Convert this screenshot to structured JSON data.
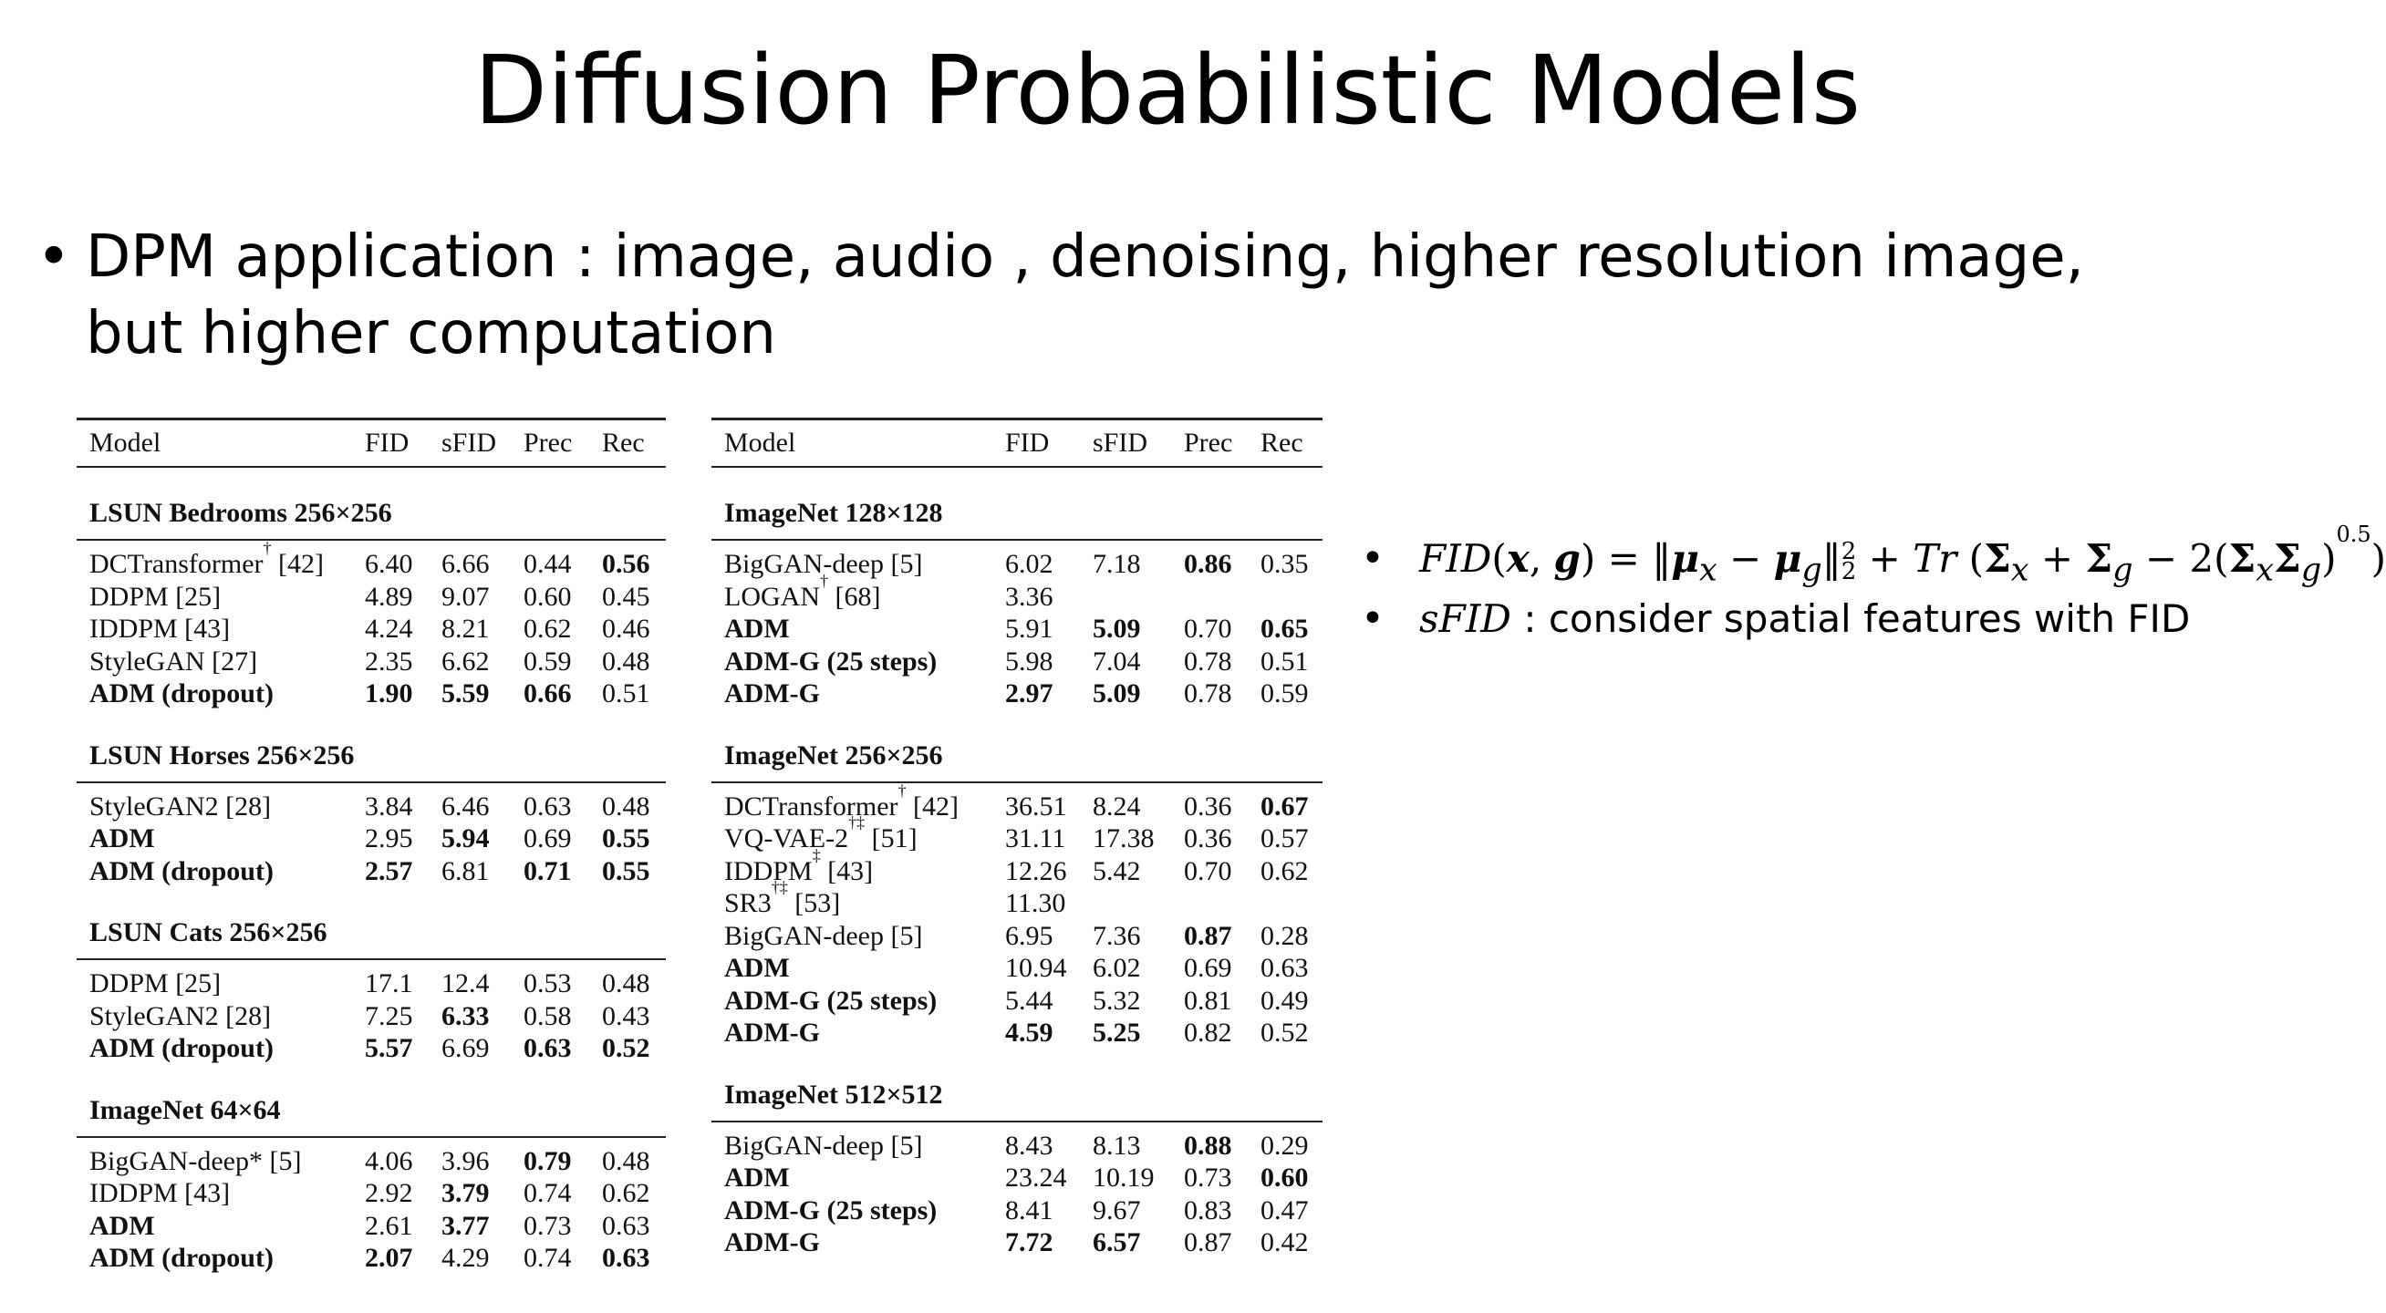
{
  "title": "Diffusion Probabilistic Models",
  "bullet": "DPM application : image, audio , denoising, higher resolution image, but higher computation",
  "columns": [
    "Model",
    "FID",
    "sFID",
    "Prec",
    "Rec"
  ],
  "left_table": [
    {
      "section": "LSUN Bedrooms 256×256",
      "rows": [
        {
          "model": "DCTransformer",
          "sup": "†",
          "ref": " [42]",
          "bold_model": false,
          "v": [
            "6.40",
            "6.66",
            "0.44",
            "0.56"
          ],
          "b": [
            false,
            false,
            false,
            true
          ]
        },
        {
          "model": "DDPM [25]",
          "sup": "",
          "ref": "",
          "bold_model": false,
          "v": [
            "4.89",
            "9.07",
            "0.60",
            "0.45"
          ],
          "b": [
            false,
            false,
            false,
            false
          ]
        },
        {
          "model": "IDDPM [43]",
          "sup": "",
          "ref": "",
          "bold_model": false,
          "v": [
            "4.24",
            "8.21",
            "0.62",
            "0.46"
          ],
          "b": [
            false,
            false,
            false,
            false
          ]
        },
        {
          "model": "StyleGAN [27]",
          "sup": "",
          "ref": "",
          "bold_model": false,
          "v": [
            "2.35",
            "6.62",
            "0.59",
            "0.48"
          ],
          "b": [
            false,
            false,
            false,
            false
          ]
        },
        {
          "model": "ADM (dropout)",
          "sup": "",
          "ref": "",
          "bold_model": true,
          "v": [
            "1.90",
            "5.59",
            "0.66",
            "0.51"
          ],
          "b": [
            true,
            true,
            true,
            false
          ]
        }
      ]
    },
    {
      "section": "LSUN Horses 256×256",
      "rows": [
        {
          "model": "StyleGAN2 [28]",
          "sup": "",
          "ref": "",
          "bold_model": false,
          "v": [
            "3.84",
            "6.46",
            "0.63",
            "0.48"
          ],
          "b": [
            false,
            false,
            false,
            false
          ]
        },
        {
          "model": "ADM",
          "sup": "",
          "ref": "",
          "bold_model": true,
          "v": [
            "2.95",
            "5.94",
            "0.69",
            "0.55"
          ],
          "b": [
            false,
            true,
            false,
            true
          ]
        },
        {
          "model": "ADM (dropout)",
          "sup": "",
          "ref": "",
          "bold_model": true,
          "v": [
            "2.57",
            "6.81",
            "0.71",
            "0.55"
          ],
          "b": [
            true,
            false,
            true,
            true
          ]
        }
      ]
    },
    {
      "section": "LSUN Cats 256×256",
      "rows": [
        {
          "model": "DDPM [25]",
          "sup": "",
          "ref": "",
          "bold_model": false,
          "v": [
            "17.1",
            "12.4",
            "0.53",
            "0.48"
          ],
          "b": [
            false,
            false,
            false,
            false
          ]
        },
        {
          "model": "StyleGAN2 [28]",
          "sup": "",
          "ref": "",
          "bold_model": false,
          "v": [
            "7.25",
            "6.33",
            "0.58",
            "0.43"
          ],
          "b": [
            false,
            true,
            false,
            false
          ]
        },
        {
          "model": "ADM (dropout)",
          "sup": "",
          "ref": "",
          "bold_model": true,
          "v": [
            "5.57",
            "6.69",
            "0.63",
            "0.52"
          ],
          "b": [
            true,
            false,
            true,
            true
          ]
        }
      ]
    },
    {
      "section": "ImageNet 64×64",
      "rows": [
        {
          "model": "BigGAN-deep* [5]",
          "sup": "",
          "ref": "",
          "bold_model": false,
          "v": [
            "4.06",
            "3.96",
            "0.79",
            "0.48"
          ],
          "b": [
            false,
            false,
            true,
            false
          ]
        },
        {
          "model": "IDDPM [43]",
          "sup": "",
          "ref": "",
          "bold_model": false,
          "v": [
            "2.92",
            "3.79",
            "0.74",
            "0.62"
          ],
          "b": [
            false,
            true,
            false,
            false
          ]
        },
        {
          "model": "ADM",
          "sup": "",
          "ref": "",
          "bold_model": true,
          "v": [
            "2.61",
            "3.77",
            "0.73",
            "0.63"
          ],
          "b": [
            false,
            true,
            false,
            false
          ]
        },
        {
          "model": "ADM (dropout)",
          "sup": "",
          "ref": "",
          "bold_model": true,
          "v": [
            "2.07",
            "4.29",
            "0.74",
            "0.63"
          ],
          "b": [
            true,
            false,
            false,
            true
          ]
        }
      ]
    }
  ],
  "right_table": [
    {
      "section": "ImageNet 128×128",
      "rows": [
        {
          "model": "BigGAN-deep [5]",
          "sup": "",
          "ref": "",
          "bold_model": false,
          "v": [
            "6.02",
            "7.18",
            "0.86",
            "0.35"
          ],
          "b": [
            false,
            false,
            true,
            false
          ]
        },
        {
          "model": "LOGAN",
          "sup": "†",
          "ref": " [68]",
          "bold_model": false,
          "v": [
            "3.36",
            "",
            "",
            ""
          ],
          "b": [
            false,
            false,
            false,
            false
          ]
        },
        {
          "model": "ADM",
          "sup": "",
          "ref": "",
          "bold_model": true,
          "v": [
            "5.91",
            "5.09",
            "0.70",
            "0.65"
          ],
          "b": [
            false,
            true,
            false,
            true
          ]
        },
        {
          "model": "ADM-G (25 steps)",
          "sup": "",
          "ref": "",
          "bold_model": true,
          "v": [
            "5.98",
            "7.04",
            "0.78",
            "0.51"
          ],
          "b": [
            false,
            false,
            false,
            false
          ]
        },
        {
          "model": "ADM-G",
          "sup": "",
          "ref": "",
          "bold_model": true,
          "v": [
            "2.97",
            "5.09",
            "0.78",
            "0.59"
          ],
          "b": [
            true,
            true,
            false,
            false
          ]
        }
      ]
    },
    {
      "section": "ImageNet 256×256",
      "rows": [
        {
          "model": "DCTransformer",
          "sup": "†",
          "ref": " [42]",
          "bold_model": false,
          "v": [
            "36.51",
            "8.24",
            "0.36",
            "0.67"
          ],
          "b": [
            false,
            false,
            false,
            true
          ]
        },
        {
          "model": "VQ-VAE-2",
          "sup": "†‡",
          "ref": " [51]",
          "bold_model": false,
          "v": [
            "31.11",
            "17.38",
            "0.36",
            "0.57"
          ],
          "b": [
            false,
            false,
            false,
            false
          ]
        },
        {
          "model": "IDDPM",
          "sup": "‡",
          "ref": " [43]",
          "bold_model": false,
          "v": [
            "12.26",
            "5.42",
            "0.70",
            "0.62"
          ],
          "b": [
            false,
            false,
            false,
            false
          ]
        },
        {
          "model": "SR3",
          "sup": "†‡",
          "ref": " [53]",
          "bold_model": false,
          "v": [
            "11.30",
            "",
            "",
            ""
          ],
          "b": [
            false,
            false,
            false,
            false
          ]
        },
        {
          "model": "BigGAN-deep [5]",
          "sup": "",
          "ref": "",
          "bold_model": false,
          "v": [
            "6.95",
            "7.36",
            "0.87",
            "0.28"
          ],
          "b": [
            false,
            false,
            true,
            false
          ]
        },
        {
          "model": "ADM",
          "sup": "",
          "ref": "",
          "bold_model": true,
          "v": [
            "10.94",
            "6.02",
            "0.69",
            "0.63"
          ],
          "b": [
            false,
            false,
            false,
            false
          ]
        },
        {
          "model": "ADM-G (25 steps)",
          "sup": "",
          "ref": "",
          "bold_model": true,
          "v": [
            "5.44",
            "5.32",
            "0.81",
            "0.49"
          ],
          "b": [
            false,
            false,
            false,
            false
          ]
        },
        {
          "model": "ADM-G",
          "sup": "",
          "ref": "",
          "bold_model": true,
          "v": [
            "4.59",
            "5.25",
            "0.82",
            "0.52"
          ],
          "b": [
            true,
            true,
            false,
            false
          ]
        }
      ]
    },
    {
      "section": "ImageNet 512×512",
      "rows": [
        {
          "model": "BigGAN-deep [5]",
          "sup": "",
          "ref": "",
          "bold_model": false,
          "v": [
            "8.43",
            "8.13",
            "0.88",
            "0.29"
          ],
          "b": [
            false,
            false,
            true,
            false
          ]
        },
        {
          "model": "ADM",
          "sup": "",
          "ref": "",
          "bold_model": true,
          "v": [
            "23.24",
            "10.19",
            "0.73",
            "0.60"
          ],
          "b": [
            false,
            false,
            false,
            true
          ]
        },
        {
          "model": "ADM-G (25 steps)",
          "sup": "",
          "ref": "",
          "bold_model": true,
          "v": [
            "8.41",
            "9.67",
            "0.83",
            "0.47"
          ],
          "b": [
            false,
            false,
            false,
            false
          ]
        },
        {
          "model": "ADM-G",
          "sup": "",
          "ref": "",
          "bold_model": true,
          "v": [
            "7.72",
            "6.57",
            "0.87",
            "0.42"
          ],
          "b": [
            true,
            true,
            false,
            false
          ]
        }
      ]
    }
  ],
  "side_bullets": {
    "fid_formula": "FID(x, g) = ‖μx − μg‖₂² + Tr(Σx + Σg − 2(ΣxΣg)^0.5)",
    "sfid_term": "sFID",
    "sfid_text": " : consider spatial features with FID"
  }
}
